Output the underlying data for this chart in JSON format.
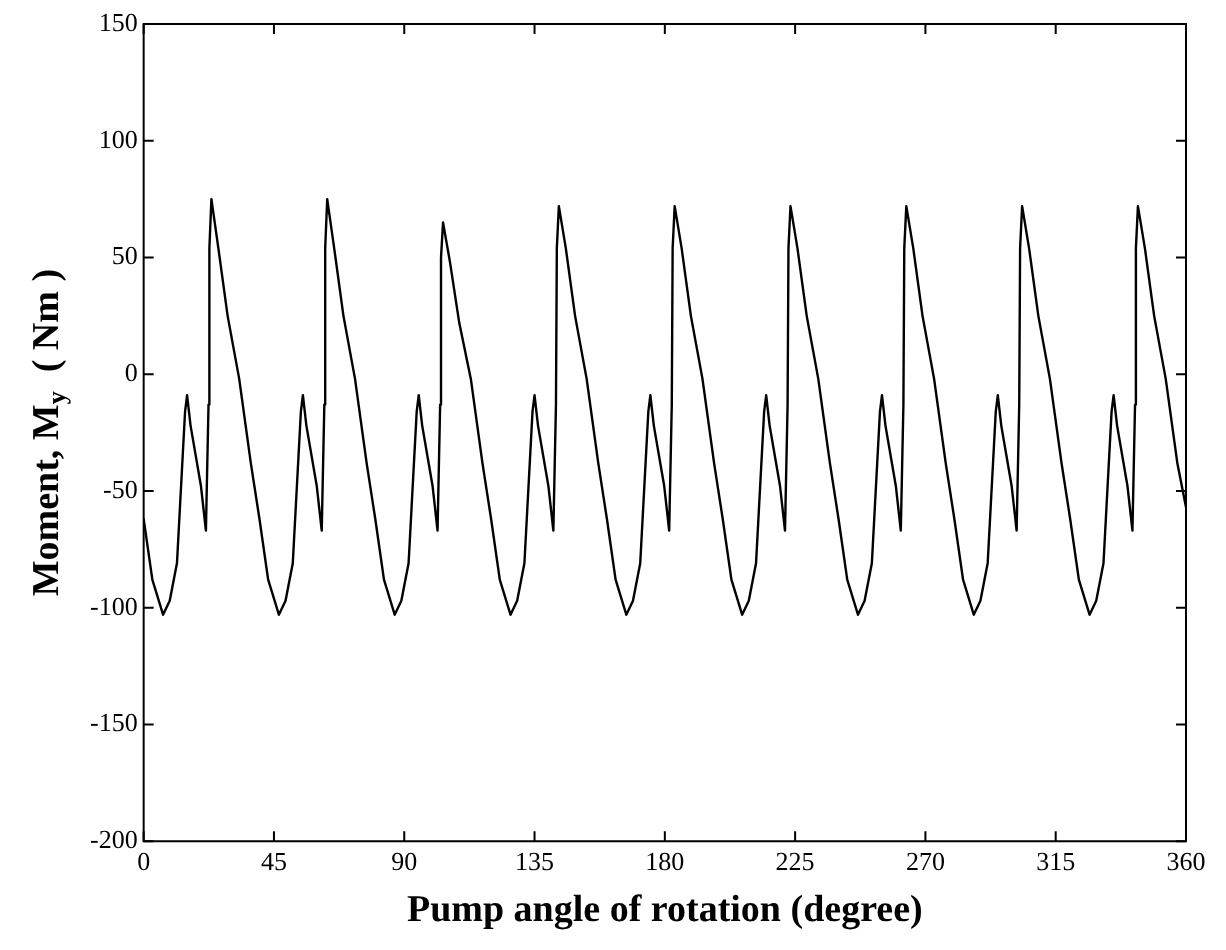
{
  "chart_data": {
    "type": "line",
    "xlabel": "Pump angle of rotation (degree)",
    "ylabel": "Moment, M$_{y}$  ( Nm )",
    "xlim": [
      0,
      360
    ],
    "xticks": [
      0,
      45,
      90,
      135,
      180,
      225,
      270,
      315,
      360
    ],
    "ylim": [
      -200,
      150
    ],
    "yticks": [
      -200,
      -150,
      -100,
      -50,
      0,
      50,
      100,
      150
    ],
    "grid": false,
    "legend": false,
    "marker": "none",
    "line_style": "solid",
    "series": [
      {
        "color": "#000000",
        "x": [
          0,
          3,
          6.7,
          9,
          11.5,
          14.3,
          15,
          16.2,
          19.8,
          21.5,
          22.4,
          22.7,
          23.4,
          25.8,
          29,
          33,
          37,
          40,
          43,
          46.7,
          49,
          51.5,
          54.3,
          55,
          56.2,
          59.8,
          61.5,
          62.4,
          62.7,
          63.4,
          65.8,
          69,
          73,
          77,
          80,
          83,
          86.7,
          89,
          91.5,
          94.3,
          95,
          96.2,
          99.8,
          101.5,
          102.4,
          102.7,
          103.4,
          105.8,
          109,
          113,
          117,
          120,
          123,
          126.7,
          129,
          131.5,
          134.3,
          135,
          136.2,
          139.8,
          141.5,
          142.4,
          142.7,
          143.4,
          145.8,
          149,
          153,
          157,
          160,
          163,
          166.7,
          169,
          171.5,
          174.3,
          175,
          176.2,
          179.8,
          181.5,
          182.4,
          182.7,
          183.4,
          185.8,
          189,
          193,
          197,
          200,
          203,
          206.7,
          209,
          211.5,
          214.3,
          215,
          216.2,
          219.8,
          221.5,
          222.4,
          222.7,
          223.4,
          225.8,
          229,
          233,
          237,
          240,
          243,
          246.7,
          249,
          251.5,
          254.3,
          255,
          256.2,
          259.8,
          261.5,
          262.4,
          262.7,
          263.4,
          265.8,
          269,
          273,
          277,
          280,
          283,
          286.7,
          289,
          291.5,
          294.3,
          295,
          296.2,
          299.8,
          301.5,
          302.4,
          302.7,
          303.4,
          305.8,
          309,
          313,
          317,
          320,
          323,
          326.7,
          329,
          331.5,
          334.3,
          335,
          336.2,
          339.8,
          341.5,
          342.4,
          342.7,
          343.4,
          345.8,
          349,
          353,
          357,
          360
        ],
        "values": [
          -62,
          -88,
          -103,
          -97,
          -81,
          -16,
          -9,
          -22,
          -48,
          -67,
          -13,
          54,
          75,
          54,
          25,
          -2,
          -38,
          -62,
          -88,
          -103,
          -97,
          -81,
          -16,
          -9,
          -22,
          -48,
          -67,
          -13,
          54,
          75,
          54,
          25,
          -2,
          -38,
          -62,
          -88,
          -103,
          -97,
          -81,
          -16,
          -9,
          -22,
          -48,
          -67,
          -13,
          50,
          65,
          48,
          22,
          -2,
          -38,
          -62,
          -88,
          -103,
          -97,
          -81,
          -16,
          -9,
          -22,
          -48,
          -67,
          -13,
          54,
          72,
          54,
          25,
          -2,
          -38,
          -62,
          -88,
          -103,
          -97,
          -81,
          -16,
          -9,
          -22,
          -48,
          -67,
          -13,
          54,
          72,
          54,
          25,
          -2,
          -38,
          -62,
          -88,
          -103,
          -97,
          -81,
          -16,
          -9,
          -22,
          -48,
          -67,
          -13,
          54,
          72,
          54,
          25,
          -2,
          -38,
          -62,
          -88,
          -103,
          -97,
          -81,
          -16,
          -9,
          -22,
          -48,
          -67,
          -13,
          54,
          72,
          54,
          25,
          -2,
          -38,
          -62,
          -88,
          -103,
          -97,
          -81,
          -16,
          -9,
          -22,
          -48,
          -67,
          -13,
          54,
          72,
          54,
          25,
          -2,
          -38,
          -62,
          -88,
          -103,
          -97,
          -81,
          -16,
          -9,
          -22,
          -48,
          -67,
          -13,
          54,
          72,
          54,
          25,
          -2,
          -38,
          -57
        ]
      }
    ]
  }
}
